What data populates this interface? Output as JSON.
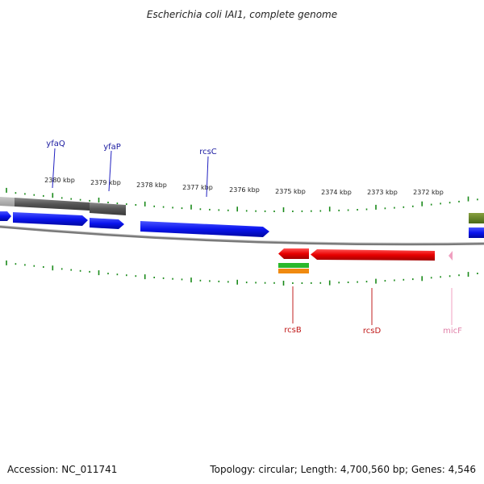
{
  "title": "Escherichia coli IAI1, complete genome",
  "footer": {
    "accession": "Accession: NC_011741",
    "summary": "Topology: circular; Length: 4,700,560 bp; Genes: 4,546"
  },
  "colors": {
    "forward_gene": "#0a14ee",
    "reverse_gene": "#ee0000",
    "rna_gene": "#f0a0c0",
    "pseudogene": "#555555",
    "tick": "#1a8a1a",
    "backbone": "#707070",
    "forward_label": "#1a1aa0",
    "reverse_label": "#c01818",
    "rna_label": "#e080a8"
  },
  "scale_labels": [
    "2380 kbp",
    "2379 kbp",
    "2378 kbp",
    "2377 kbp",
    "2376 kbp",
    "2375 kbp",
    "2374 kbp",
    "2373 kbp",
    "2372 kbp"
  ],
  "gene_labels": {
    "forward": [
      "yfaQ",
      "yfaP",
      "rcsC"
    ],
    "reverse": [
      "rcsB",
      "rcsD"
    ],
    "rna": [
      "micF"
    ]
  }
}
